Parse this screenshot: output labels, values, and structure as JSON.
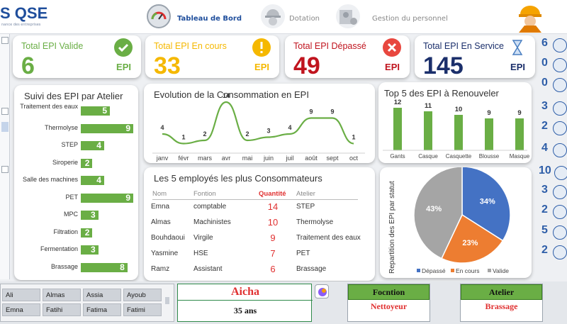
{
  "header": {
    "logo": "S QSE",
    "logo_sub": "nance des entreprises",
    "nav": [
      {
        "label": "Tableau de Bord",
        "icon": "gauge-icon",
        "active": true
      },
      {
        "label": "Dotation",
        "icon": "worker-helmet-icon",
        "active": false
      },
      {
        "label": "Gestion du personnel",
        "icon": "personnel-settings-icon",
        "active": false
      }
    ]
  },
  "kpis": [
    {
      "title": "Total EPI Valide",
      "value": "6",
      "unit": "EPI",
      "color": "#6aae45",
      "icon": "check-icon"
    },
    {
      "title": "Total EPI En cours",
      "value": "33",
      "unit": "EPI",
      "color": "#f5b800",
      "icon": "warning-icon"
    },
    {
      "title": "Total EPI Dépassé",
      "value": "49",
      "unit": "EPI",
      "color": "#c0141e",
      "icon": "close-icon"
    },
    {
      "title": "Total EPI En Service",
      "value": "145",
      "unit": "EPI",
      "color": "#1b2f6b",
      "icon": "hourglass-icon"
    }
  ],
  "atelier_panel": {
    "title": "Suivi des EPI par Atelier",
    "items": [
      {
        "label": "Traitement des eaux",
        "value": 5
      },
      {
        "label": "Thermolyse",
        "value": 9
      },
      {
        "label": "STEP",
        "value": 4
      },
      {
        "label": "Siroperie",
        "value": 2
      },
      {
        "label": "Salle des machines",
        "value": 4
      },
      {
        "label": "PET",
        "value": 9
      },
      {
        "label": "MPC",
        "value": 3
      },
      {
        "label": "Filtration",
        "value": 2
      },
      {
        "label": "Fermentation",
        "value": 3
      },
      {
        "label": "Brassage",
        "value": 8
      }
    ]
  },
  "chart_data": [
    {
      "type": "line",
      "title": "Evolution de la Consommation en EPI",
      "categories": [
        "janv",
        "févr",
        "mars",
        "avr",
        "mai",
        "juin",
        "juil",
        "août",
        "sept",
        "oct"
      ],
      "values": [
        4,
        1,
        2,
        14,
        2,
        3,
        4,
        9,
        9,
        1
      ],
      "color": "#6aae45"
    },
    {
      "type": "bar",
      "title": "Top 5 des EPI à Renouveler",
      "categories": [
        "Gants",
        "Casque",
        "Casquette",
        "Blousse",
        "Masque"
      ],
      "values": [
        12,
        11,
        10,
        9,
        9
      ],
      "color": "#6aae45"
    },
    {
      "type": "pie",
      "ylabel": "Repartition des EPI par statut",
      "categories": [
        "Dépassé",
        "En cours",
        "Valide"
      ],
      "values": [
        34,
        23,
        43
      ],
      "labels": [
        "34%",
        "23%",
        "43%"
      ],
      "colors": [
        "#4472c4",
        "#ed7d31",
        "#a5a5a5"
      ]
    }
  ],
  "employees": {
    "title": "Les 5 employés les plus Consommateurs",
    "headers": [
      "Nom",
      "Fontion",
      "Quantité",
      "Atelier"
    ],
    "rows": [
      {
        "nom": "Emna",
        "fonction": "comptable",
        "qty": "14",
        "atelier": "STEP"
      },
      {
        "nom": "Almas",
        "fonction": "Machinistes",
        "qty": "10",
        "atelier": "Thermolyse"
      },
      {
        "nom": "Bouhdaoui",
        "fonction": "Virgile",
        "qty": "9",
        "atelier": "Traitement des eaux"
      },
      {
        "nom": "Yasmine",
        "fonction": "HSE",
        "qty": "7",
        "atelier": "PET"
      },
      {
        "nom": "Ramz",
        "fonction": "Assistant",
        "qty": "6",
        "atelier": "Brassage"
      }
    ]
  },
  "side_counts": [
    "6",
    "0",
    "0",
    "3",
    "2",
    "4",
    "10",
    "3",
    "2",
    "5",
    "2"
  ],
  "slicer": {
    "row1": [
      "Ali",
      "Almas",
      "Assia",
      "Ayoub"
    ],
    "row2": [
      "Emna",
      "Fatihi",
      "Fatima",
      "Fatimi"
    ]
  },
  "selected": {
    "name": "Aicha",
    "age": "35 ans",
    "fonction_label": "Focntion",
    "fonction_value": "Nettoyeur",
    "atelier_label": "Atelier",
    "atelier_value": "Brassage"
  }
}
